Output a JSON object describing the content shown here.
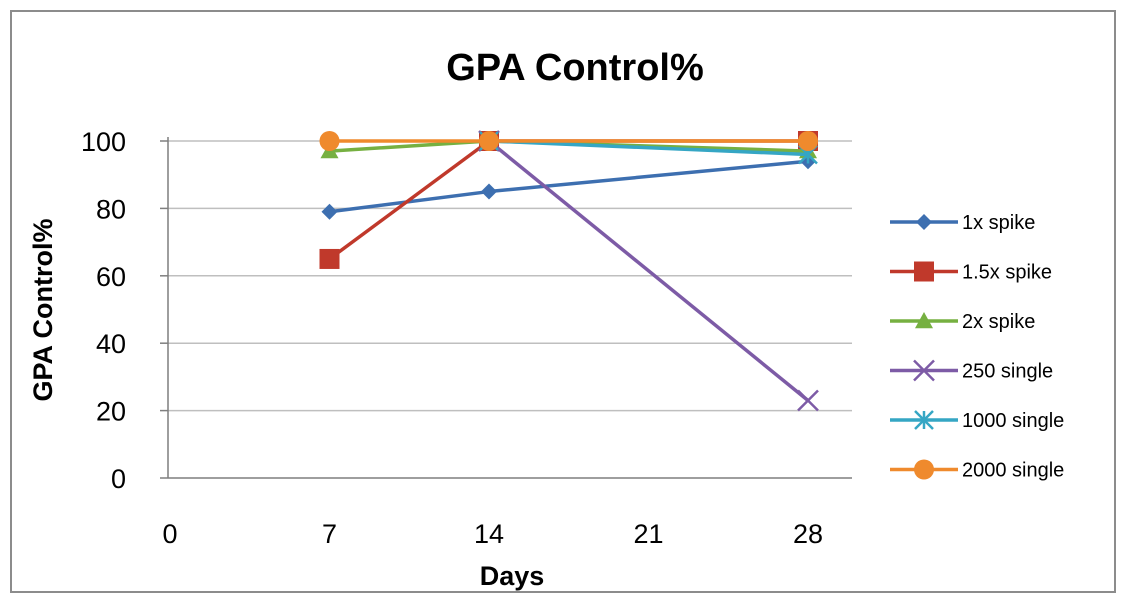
{
  "chart_data": {
    "type": "line",
    "title": "GPA Control%",
    "xlabel": "Days",
    "ylabel": "GPA Control%",
    "xlim": [
      0,
      28
    ],
    "ylim": [
      0,
      100
    ],
    "x_ticks": [
      "0",
      "7",
      "14",
      "21",
      "28"
    ],
    "y_ticks": [
      "0",
      "20",
      "40",
      "60",
      "80",
      "100"
    ],
    "grid": "horizontal",
    "legend_position": "right",
    "series": [
      {
        "name": "1x spike",
        "color": "#3d6fb0",
        "marker": "diamond",
        "x": [
          7,
          14,
          28
        ],
        "y": [
          79,
          85,
          94
        ]
      },
      {
        "name": "1.5x spike",
        "color": "#c0392b",
        "marker": "square",
        "x": [
          7,
          14,
          28
        ],
        "y": [
          65,
          100,
          100
        ]
      },
      {
        "name": "2x spike",
        "color": "#76b041",
        "marker": "triangle",
        "x": [
          7,
          14,
          28
        ],
        "y": [
          97,
          100,
          97
        ]
      },
      {
        "name": "250 single",
        "color": "#7d5ba6",
        "marker": "x",
        "x": [
          14,
          28
        ],
        "y": [
          100,
          23
        ]
      },
      {
        "name": "1000 single",
        "color": "#35a6c4",
        "marker": "star",
        "x": [
          14,
          28
        ],
        "y": [
          100,
          96
        ]
      },
      {
        "name": "2000 single",
        "color": "#ef8a2d",
        "marker": "circle",
        "x": [
          7,
          14,
          28
        ],
        "y": [
          100,
          100,
          100
        ]
      }
    ]
  }
}
